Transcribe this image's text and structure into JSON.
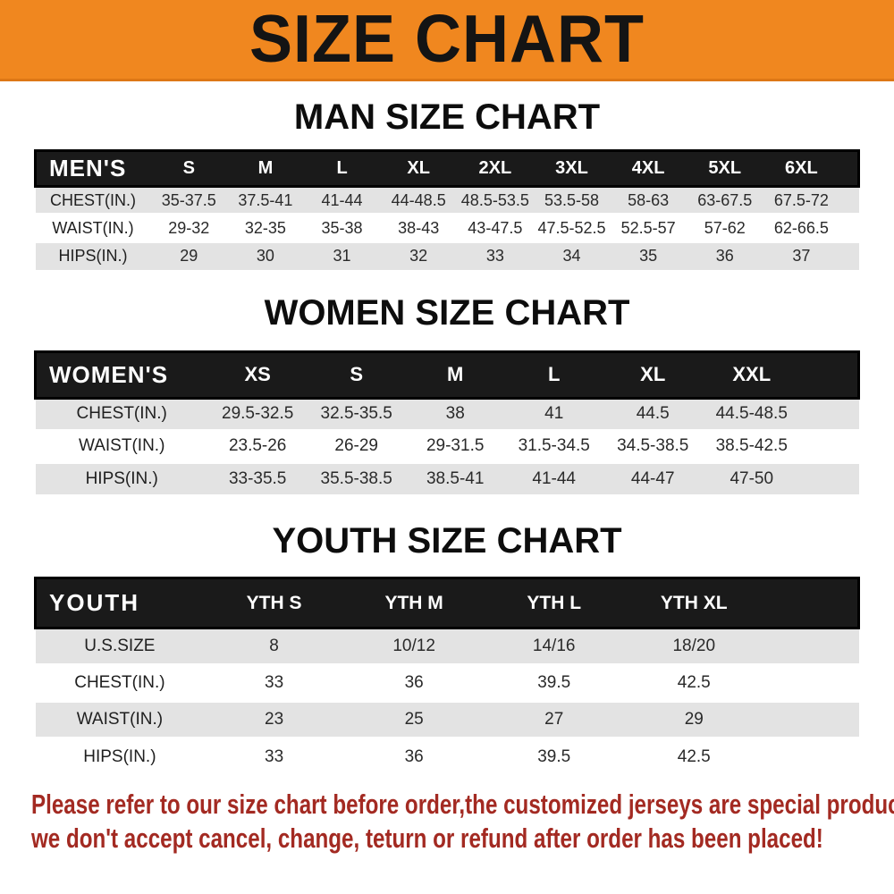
{
  "banner": {
    "title": "SIZE CHART",
    "bg_color": "#F0871F",
    "text_color": "#141414"
  },
  "sections": [
    {
      "name": "men",
      "title": "MAN SIZE CHART",
      "table": {
        "header_label": "MEN'S",
        "columns": [
          "S",
          "M",
          "L",
          "XL",
          "2XL",
          "3XL",
          "4XL",
          "5XL",
          "6XL"
        ],
        "rows": [
          {
            "label": "CHEST(IN.)",
            "values": [
              "35-37.5",
              "37.5-41",
              "41-44",
              "44-48.5",
              "48.5-53.5",
              "53.5-58",
              "58-63",
              "63-67.5",
              "67.5-72"
            ]
          },
          {
            "label": "WAIST(IN.)",
            "values": [
              "29-32",
              "32-35",
              "35-38",
              "38-43",
              "43-47.5",
              "47.5-52.5",
              "52.5-57",
              "57-62",
              "62-66.5"
            ]
          },
          {
            "label": "HIPS(IN.)",
            "values": [
              "29",
              "30",
              "31",
              "32",
              "33",
              "34",
              "35",
              "36",
              "37"
            ]
          }
        ]
      }
    },
    {
      "name": "women",
      "title": "WOMEN SIZE CHART",
      "table": {
        "header_label": "WOMEN'S",
        "columns": [
          "XS",
          "S",
          "M",
          "L",
          "XL",
          "XXL"
        ],
        "rows": [
          {
            "label": "CHEST(IN.)",
            "values": [
              "29.5-32.5",
              "32.5-35.5",
              "38",
              "41",
              "44.5",
              "44.5-48.5"
            ]
          },
          {
            "label": "WAIST(IN.)",
            "values": [
              "23.5-26",
              "26-29",
              "29-31.5",
              "31.5-34.5",
              "34.5-38.5",
              "38.5-42.5"
            ]
          },
          {
            "label": "HIPS(IN.)",
            "values": [
              "33-35.5",
              "35.5-38.5",
              "38.5-41",
              "41-44",
              "44-47",
              "47-50"
            ]
          }
        ]
      }
    },
    {
      "name": "youth",
      "title": "YOUTH SIZE CHART",
      "table": {
        "header_label": "YOUTH",
        "columns": [
          "YTH S",
          "YTH M",
          "YTH L",
          "YTH XL"
        ],
        "rows": [
          {
            "label": "U.S.SIZE",
            "values": [
              "8",
              "10/12",
              "14/16",
              "18/20"
            ]
          },
          {
            "label": "CHEST(IN.)",
            "values": [
              "33",
              "36",
              "39.5",
              "42.5"
            ]
          },
          {
            "label": "WAIST(IN.)",
            "values": [
              "23",
              "25",
              "27",
              "29"
            ]
          },
          {
            "label": "HIPS(IN.)",
            "values": [
              "33",
              "36",
              "39.5",
              "42.5"
            ]
          }
        ]
      }
    }
  ],
  "footer": {
    "line1": "Please refer to our size chart before order,the customized jerseys are special products,",
    "line2": "we don't accept cancel, change, teturn or refund after order has been placed!",
    "text_color": "#A32A22"
  },
  "colors": {
    "banner_orange": "#F0871F",
    "table_header_bg": "#1A1A1A",
    "row_alt_gray": "#E3E3E3",
    "note_red": "#A32A22"
  }
}
